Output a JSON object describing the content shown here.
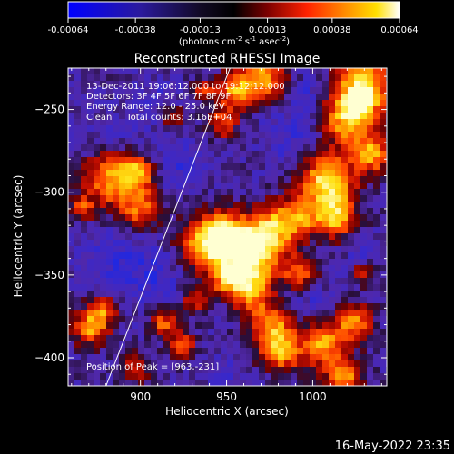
{
  "colorbar": {
    "ticks": [
      "-0.00064",
      "-0.00038",
      "-0.00013",
      "0.00013",
      "0.00038",
      "0.00064"
    ],
    "min": -0.00064,
    "max": 0.00064,
    "units_prefix": "(photons cm",
    "units_exp1": "-2",
    "units_mid1": " s",
    "units_exp2": "-1",
    "units_mid2": " asec",
    "units_exp3": "-2",
    "units_suffix": ")",
    "colors": [
      "#0000ff",
      "#3a2aa0",
      "#000000",
      "#8a0000",
      "#ff2a00",
      "#ff8a00",
      "#ffd000",
      "#ffffff"
    ]
  },
  "chart_data": {
    "type": "heatmap",
    "title": "Reconstructed RHESSI Image",
    "xlabel": "Heliocentric X (arcsec)",
    "ylabel": "Heliocentric Y (arcsec)",
    "xlim": [
      858,
      1043
    ],
    "ylim": [
      -417,
      -225
    ],
    "xticks": [
      900,
      950,
      1000
    ],
    "yticks": [
      -250,
      -300,
      -350,
      -400
    ],
    "annotations": [
      "13-Dec-2011 19:06:12.000 to 19:12:12.000",
      "Detectors: 3F 4F 5F 6F 7F 8F 9F",
      "Energy Range: 12.0 - 25.0 keV",
      "Clean     Total counts: 3.16E+04"
    ],
    "peak_label": "Position of Peak = [963,-231]",
    "peak": [
      963,
      -231
    ],
    "limb_line": [
      [
        880,
        -417
      ],
      [
        952,
        -225
      ]
    ]
  },
  "footer": {
    "timestamp": "16-May-2022 23:35"
  }
}
